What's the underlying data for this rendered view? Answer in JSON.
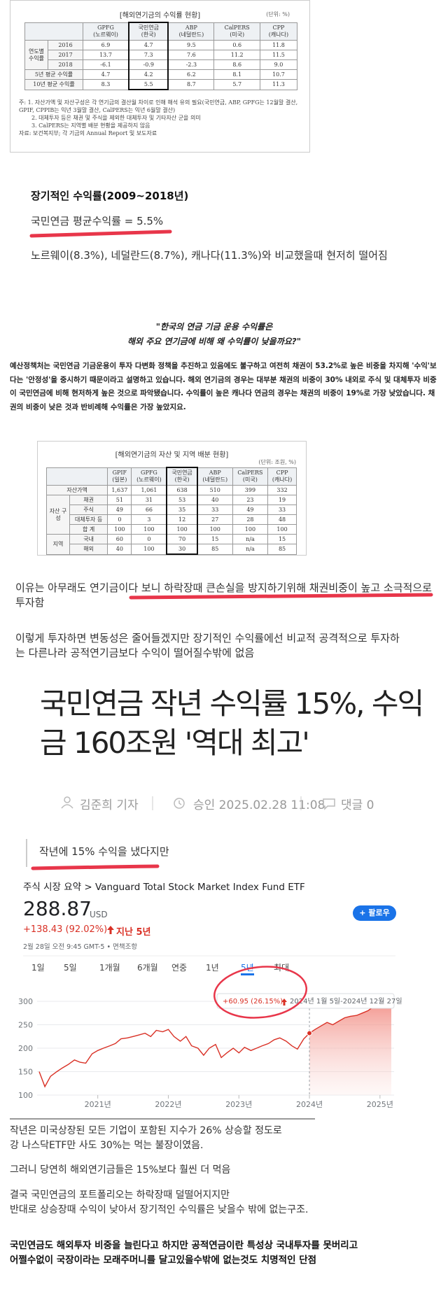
{
  "table1": {
    "title": "[해외연기금의 수익률 현황]",
    "unit": "(단위: %)",
    "columns": [
      {
        "name": "GPFG",
        "sub": "(노르웨이)"
      },
      {
        "name": "국민연금",
        "sub": "(한국)"
      },
      {
        "name": "ABP",
        "sub": "(네덜란드)"
      },
      {
        "name": "CalPERS",
        "sub": "(미국)"
      },
      {
        "name": "CPP",
        "sub": "(캐나다)"
      }
    ],
    "rows": [
      {
        "group": "연도별 수익률",
        "rows": [
          {
            "label": "2016",
            "cells": [
              "6.9",
              "4.7",
              "9.5",
              "0.6",
              "11.8"
            ]
          },
          {
            "label": "2017",
            "cells": [
              "13.7",
              "7.3",
              "7.6",
              "11.2",
              "11.5"
            ]
          },
          {
            "label": "2018",
            "cells": [
              "-6.1",
              "-0.9",
              "-2.3",
              "8.6",
              "9.0"
            ]
          }
        ]
      },
      {
        "label": "5년 평균 수익률",
        "cells": [
          "4.7",
          "4.2",
          "6.2",
          "8.1",
          "10.7"
        ]
      },
      {
        "label": "10년 평균 수익률",
        "cells": [
          "8.3",
          "5.5",
          "8.7",
          "5.7",
          "11.3"
        ]
      }
    ],
    "notes": [
      "주: 1. 자산가액 및 자산구성은 각 연기금의 결산월 차이로 인해 해석 유의 필요(국민연금, ABP, GPFG는 12월말 결산, GPIF, CPPIB는 익년 3월말 결산, CalPERS는 익년 6월말 결산)",
      "2. 대체투자 등은 채권 및 주식을 제외한 대체투자 및 기타자산 군을 의미",
      "3. CalPERS는 지역별 배분 현황을 제공하지 않음",
      "자료: 보건복지부; 각 기금의 Annual Report 및 보도자료"
    ]
  },
  "section1": {
    "heading": "장기적인 수익률(2009~2018년)",
    "highlight": "국민연금 평균수익률 = 5.5%",
    "comparison": "노르웨이(8.3%), 네덜란드(8.7%), 캐나다(11.3%)와 비교했을때 현저히 떨어짐"
  },
  "article_quote": {
    "lines": [
      "\"한국의 연금 기금 운용 수익률은",
      "해외 주요 연기금에 비해 왜 수익률이 낮을까요?\""
    ],
    "body": "예산정책처는 국민연금 기금운용이 투자 다변화 정책을 추진하고 있음에도 불구하고 여전히 채권이 53.2%로 높은 비중을 차지해 '수익'보다는 '안정성'을 중시하기 때문이라고 설명하고 있습니다. 해외 연기금의 경우는 대부분 채권의 비중이 30% 내외로 주식 및 대체투자 비중이 국민연금에 비해 현저하게 높은 것으로 파악됐습니다. 수익률이 높은 캐나다 연금의 경우는 채권의 비중이 19%로 가장 낮았습니다. 채권의 비중이 낮은 것과 반비례해 수익률은 가장 높았지요."
  },
  "table2": {
    "title": "[해외연기금의 자산 및 지역 배분 현황]",
    "unit": "(단위: 조원, %)",
    "columns": [
      {
        "name": "GPIF",
        "sub": "(일본)"
      },
      {
        "name": "GPFG",
        "sub": "(노르웨이)"
      },
      {
        "name": "국민연금",
        "sub": "(한국)"
      },
      {
        "name": "ABP",
        "sub": "(네덜란드)"
      },
      {
        "name": "CalPERS",
        "sub": "(미국)"
      },
      {
        "name": "CPP",
        "sub": "(캐나다)"
      }
    ],
    "rows": [
      {
        "label": "자산가액",
        "cells": [
          "1,637",
          "1,061",
          "638",
          "510",
          "399",
          "332"
        ]
      },
      {
        "group": "자산 구성",
        "rows": [
          {
            "label": "채권",
            "cells": [
              "51",
              "31",
              "53",
              "40",
              "23",
              "19"
            ]
          },
          {
            "label": "주식",
            "cells": [
              "49",
              "66",
              "35",
              "33",
              "49",
              "33"
            ]
          },
          {
            "label": "대체투자 등",
            "cells": [
              "0",
              "3",
              "12",
              "27",
              "28",
              "48"
            ]
          },
          {
            "label": "합 계",
            "cells": [
              "100",
              "100",
              "100",
              "100",
              "100",
              "100"
            ]
          }
        ]
      },
      {
        "group": "지역",
        "rows": [
          {
            "label": "국내",
            "cells": [
              "60",
              "0",
              "70",
              "15",
              "n/a",
              "15"
            ]
          },
          {
            "label": "해외",
            "cells": [
              "40",
              "100",
              "30",
              "85",
              "n/a",
              "85"
            ]
          }
        ]
      }
    ]
  },
  "commentary": {
    "reason": "이유는 아무래도 연기금이다 보니 하락장때 큰손실을 방지하기위해 채권비중이 높고 소극적으로 투자함",
    "consequence": "이렇게 투자하면 변동성은 줄어들겠지만 장기적인 수익률에선 비교적 공격적으로 투자하는 다른나라 공적연기금보다 수익이 떨어질수밖에 없음"
  },
  "news": {
    "headline": [
      "국민연금 작년 수익률 15%, 수익",
      "금 160조원 '역대 최고'"
    ],
    "author": "김준희 기자",
    "date": "승인 2025.02.28 11:08",
    "comments": "댓글 0"
  },
  "caption": "작년에 15% 수익을 냈다지만",
  "finance": {
    "breadcrumb": "주식 시장 요약 > Vanguard Total Stock Market Index Fund ETF",
    "price": "288.87",
    "currency": "USD",
    "change": "+138.43 (92.02%)",
    "period": "지난 5년",
    "timestamp": "2월 28일 오전 9:45 GMT-5 • 면책조항",
    "follow": "+ 팔로우",
    "tabs": [
      "1일",
      "5일",
      "1개월",
      "6개월",
      "연중",
      "1년",
      "5년",
      "최대"
    ]
  },
  "chart_data": {
    "type": "line",
    "color": "#d93025",
    "x": [
      2020.17,
      2020.25,
      2020.33,
      2020.42,
      2020.5,
      2020.58,
      2020.67,
      2020.75,
      2020.83,
      2020.92,
      2021.0,
      2021.08,
      2021.17,
      2021.25,
      2021.33,
      2021.42,
      2021.5,
      2021.58,
      2021.67,
      2021.75,
      2021.83,
      2021.92,
      2022.0,
      2022.08,
      2022.17,
      2022.25,
      2022.33,
      2022.42,
      2022.5,
      2022.58,
      2022.67,
      2022.75,
      2022.83,
      2022.92,
      2023.0,
      2023.08,
      2023.17,
      2023.25,
      2023.33,
      2023.42,
      2023.5,
      2023.58,
      2023.67,
      2023.75,
      2023.83,
      2023.92,
      2024.0,
      2024.08,
      2024.17,
      2024.25,
      2024.33,
      2024.42,
      2024.5,
      2024.58,
      2024.67,
      2024.75,
      2024.83,
      2024.92,
      2025.0,
      2025.08,
      2025.16
    ],
    "values": [
      150,
      118,
      140,
      150,
      158,
      165,
      175,
      170,
      168,
      188,
      195,
      200,
      205,
      210,
      220,
      222,
      225,
      228,
      232,
      225,
      238,
      235,
      240,
      225,
      215,
      225,
      205,
      200,
      185,
      200,
      208,
      180,
      190,
      200,
      190,
      202,
      195,
      200,
      205,
      210,
      218,
      222,
      215,
      205,
      198,
      220,
      232,
      240,
      248,
      255,
      250,
      258,
      265,
      268,
      270,
      275,
      280,
      290,
      290,
      293,
      288.87
    ],
    "xlim": [
      2020.14,
      2025.2
    ],
    "ylim": [
      100,
      300
    ],
    "yticks": [
      100,
      150,
      200,
      250,
      300
    ],
    "xticks": [
      {
        "value": 2021,
        "label": "2021년"
      },
      {
        "value": 2022,
        "label": "2022년"
      },
      {
        "value": 2023,
        "label": "2023년"
      },
      {
        "value": 2024,
        "label": "2024년"
      },
      {
        "value": 2025,
        "label": "2025년"
      }
    ],
    "grid": true,
    "annotations": {
      "change": "+60.95 (26.15%)",
      "range": "2024년 1월 5일-2024년 12월 27일"
    }
  },
  "conclusion": {
    "p1": [
      "작년은 미국상장된 모든 기업이 포함된 지수가 26% 상승할 정도로",
      "강 나스닥ETF만 사도 30%는 먹는 불장이였음."
    ],
    "p2": "그러니 당연히 해외연기금들은 15%보다 훨씬 더 먹음",
    "p3": [
      "결국 국민연금의 포트폴리오는 하락장때 덜떨어지지만",
      "반대로 상승장때 수익이 낮아서 장기적인 수익률은 낮을수 밖에 없는구조."
    ],
    "p4": [
      "국민연금도 해외투자 비중을 늘린다고 하지만 공적연금이란 특성상 국내투자를 못버리고",
      "어쩔수없이 국장이라는 모래주머니를 달고있을수밖에 없는것도 치명적인 단점"
    ]
  }
}
